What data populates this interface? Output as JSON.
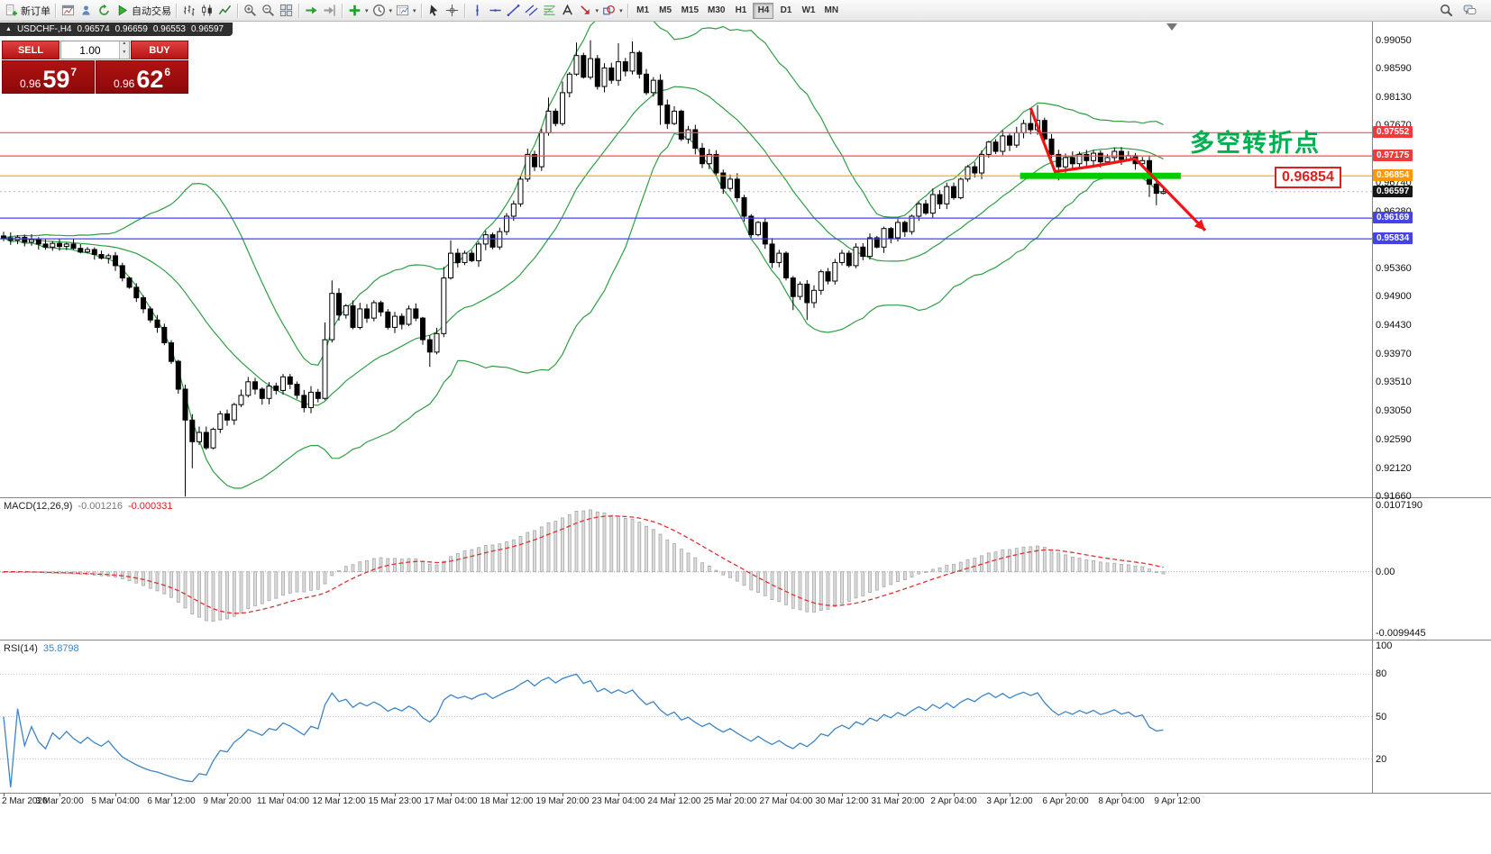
{
  "window": {
    "symbol_tab": {
      "arrow": "▲",
      "symbol": "USDCHF-,H4",
      "open": "0.96574",
      "high": "0.96659",
      "low": "0.96553",
      "close": "0.96597"
    }
  },
  "toolbar": {
    "groups": [
      [
        {
          "name": "new-order-button",
          "icon": "new-order",
          "label": "新订单"
        }
      ],
      [
        {
          "name": "chart-window-button",
          "icon": "chart-window"
        },
        {
          "name": "navigator-button",
          "icon": "navigator"
        },
        {
          "name": "refresh-button",
          "icon": "refresh"
        },
        {
          "name": "auto-trading-button",
          "icon": "auto-trading",
          "label": "自动交易"
        }
      ],
      [
        {
          "name": "bar-chart-button",
          "icon": "bars"
        },
        {
          "name": "candlestick-chart-button",
          "icon": "candles"
        },
        {
          "name": "line-chart-button",
          "icon": "line-chart"
        }
      ],
      [
        {
          "name": "zoom-in-button",
          "icon": "zoom-in"
        },
        {
          "name": "zoom-out-button",
          "icon": "zoom-out"
        },
        {
          "name": "tile-windows-button",
          "icon": "tile"
        }
      ],
      [
        {
          "name": "auto-scroll-button",
          "icon": "auto-scroll"
        },
        {
          "name": "chart-shift-button",
          "icon": "chart-shift"
        }
      ],
      [
        {
          "name": "indicators-button",
          "icon": "indicators",
          "dropdown": true
        },
        {
          "name": "periods-button",
          "icon": "periods",
          "dropdown": true
        },
        {
          "name": "templates-button",
          "icon": "template",
          "dropdown": true
        }
      ],
      [
        {
          "name": "cursor-button",
          "icon": "cursor"
        },
        {
          "name": "crosshair-button",
          "icon": "crosshair"
        }
      ],
      [
        {
          "name": "vertical-line-button",
          "icon": "vline"
        },
        {
          "name": "horizontal-line-button",
          "icon": "hline"
        },
        {
          "name": "trendline-button",
          "icon": "trendline"
        },
        {
          "name": "channel-button",
          "icon": "channel"
        },
        {
          "name": "fibonacci-button",
          "icon": "fibo"
        },
        {
          "name": "text-button",
          "icon": "text"
        },
        {
          "name": "arrows-button",
          "icon": "arrows",
          "dropdown": true
        },
        {
          "name": "shapes-button",
          "icon": "shapes",
          "dropdown": true
        }
      ]
    ],
    "timeframes": [
      "M1",
      "M5",
      "M15",
      "M30",
      "H1",
      "H4",
      "D1",
      "W1",
      "MN"
    ],
    "active_timeframe": "H4",
    "right_icons": [
      {
        "name": "search-button",
        "icon": "search"
      },
      {
        "name": "community-button",
        "icon": "chat"
      }
    ]
  },
  "trade_panel": {
    "sell_label": "SELL",
    "buy_label": "BUY",
    "volume": "1.00",
    "sell_quote": {
      "prefix": "0.96",
      "big": "59",
      "sup": "7"
    },
    "buy_quote": {
      "prefix": "0.96",
      "big": "62",
      "sup": "6"
    }
  },
  "indicators": {
    "macd": {
      "label": "MACD(12,26,9)",
      "value_main": "-0.001216",
      "value_signal": "-0.000331"
    },
    "rsi": {
      "label": "RSI(14)",
      "value": "35.8798"
    }
  },
  "annotations": {
    "turning_point_text": "多空转折点",
    "price_label": "0.96854",
    "green_zone": {
      "from_bar": 145.5,
      "to_bar": 168.5,
      "price": 0.96854
    },
    "arrow_points": [
      [
        147,
        0.9795
      ],
      [
        150.5,
        0.9692
      ],
      [
        156,
        0.9701
      ],
      [
        162,
        0.9713
      ],
      [
        172,
        0.9597
      ]
    ]
  },
  "price_scale": {
    "regular_labels": [
      "0.99050",
      "0.98590",
      "0.98130",
      "0.97670",
      "0.96740",
      "0.96280",
      "0.95360",
      "0.94900",
      "0.94430",
      "0.93970",
      "0.93510",
      "0.93050",
      "0.92590",
      "0.92120",
      "0.91660"
    ],
    "tags": [
      {
        "text": "0.97552",
        "type": "red"
      },
      {
        "text": "0.97175",
        "type": "red"
      },
      {
        "text": "0.96854",
        "type": "orange"
      },
      {
        "text": "0.96597",
        "type": "current"
      },
      {
        "text": "0.96169",
        "type": "blue"
      },
      {
        "text": "0.95834",
        "type": "blue"
      }
    ]
  },
  "time_axis": {
    "labels": [
      "2 Mar 2020",
      "3 Mar 20:00",
      "5 Mar 04:00",
      "6 Mar 12:00",
      "9 Mar 20:00",
      "11 Mar 04:00",
      "12 Mar 12:00",
      "15 Mar 23:00",
      "17 Mar 04:00",
      "18 Mar 12:00",
      "19 Mar 20:00",
      "23 Mar 04:00",
      "24 Mar 12:00",
      "25 Mar 20:00",
      "27 Mar 04:00",
      "30 Mar 12:00",
      "31 Mar 20:00",
      "2 Apr 04:00",
      "3 Apr 12:00",
      "6 Apr 20:00",
      "8 Apr 04:00",
      "9 Apr 12:00"
    ]
  },
  "colors": {
    "bollinger": "#2f9e44",
    "macd_signal": "#e03131",
    "rsi_line": "#3d85c6",
    "green_zone": "#00cc00",
    "arrow_red": "#f01414",
    "annotation_green": "#00b050",
    "tag_red": "#ef3b3b",
    "tag_orange": "#ff9800",
    "tag_blue": "#4343e8",
    "tag_current": "#151515"
  },
  "chart_data": {
    "type": "candlestick",
    "symbol": "USDCHF-",
    "timeframe": "H4",
    "last_ohlc": {
      "open": 0.96574,
      "high": 0.96659,
      "low": 0.96553,
      "close": 0.96597
    },
    "price_axis": {
      "min": 0.9165,
      "max": 0.9935
    },
    "first_open": 0.9588,
    "closes": [
      0.9585,
      0.9581,
      0.9586,
      0.9578,
      0.9582,
      0.9575,
      0.957,
      0.9576,
      0.9571,
      0.9575,
      0.9568,
      0.9562,
      0.9566,
      0.9558,
      0.9552,
      0.9556,
      0.954,
      0.952,
      0.9505,
      0.9488,
      0.947,
      0.9452,
      0.944,
      0.9415,
      0.9385,
      0.934,
      0.929,
      0.9255,
      0.927,
      0.9245,
      0.9275,
      0.93,
      0.929,
      0.9315,
      0.933,
      0.9352,
      0.934,
      0.9325,
      0.9345,
      0.9338,
      0.936,
      0.9348,
      0.933,
      0.931,
      0.9335,
      0.9325,
      0.942,
      0.9495,
      0.946,
      0.9475,
      0.944,
      0.947,
      0.9455,
      0.948,
      0.9465,
      0.944,
      0.9458,
      0.9445,
      0.947,
      0.9455,
      0.942,
      0.94,
      0.943,
      0.952,
      0.956,
      0.9545,
      0.956,
      0.9548,
      0.9575,
      0.959,
      0.957,
      0.9595,
      0.962,
      0.964,
      0.968,
      0.972,
      0.97,
      0.9755,
      0.979,
      0.977,
      0.982,
      0.985,
      0.988,
      0.9845,
      0.9875,
      0.983,
      0.986,
      0.984,
      0.987,
      0.9855,
      0.9885,
      0.985,
      0.982,
      0.984,
      0.98,
      0.977,
      0.979,
      0.9745,
      0.976,
      0.973,
      0.9705,
      0.972,
      0.969,
      0.9665,
      0.968,
      0.965,
      0.962,
      0.959,
      0.961,
      0.9575,
      0.9545,
      0.956,
      0.952,
      0.949,
      0.951,
      0.948,
      0.95,
      0.953,
      0.9515,
      0.9545,
      0.956,
      0.954,
      0.957,
      0.9555,
      0.9585,
      0.957,
      0.96,
      0.9585,
      0.961,
      0.9595,
      0.962,
      0.964,
      0.9625,
      0.9655,
      0.964,
      0.9668,
      0.965,
      0.968,
      0.97,
      0.969,
      0.972,
      0.974,
      0.9725,
      0.975,
      0.9735,
      0.9755,
      0.977,
      0.976,
      0.9775,
      0.9745,
      0.972,
      0.97,
      0.9715,
      0.9705,
      0.972,
      0.971,
      0.9722,
      0.9708,
      0.9715,
      0.9725,
      0.9712,
      0.9718,
      0.9705,
      0.971,
      0.9672,
      0.9657,
      0.96597
    ],
    "wick_overrides": {
      "26": [
        null,
        0.9166
      ],
      "27": [
        null,
        0.9212
      ],
      "46": [
        0.9448,
        null
      ],
      "47": [
        0.9516,
        null
      ],
      "61": [
        null,
        0.9376
      ],
      "63": [
        0.9538,
        null
      ],
      "64": [
        0.9581,
        null
      ],
      "78": [
        0.9812,
        null
      ],
      "80": [
        0.9838,
        null
      ],
      "82": [
        0.9901,
        null
      ],
      "84": [
        0.9905,
        null
      ],
      "88": [
        0.99,
        null
      ],
      "90": [
        0.9903,
        null
      ],
      "94": [
        null,
        0.9768
      ],
      "113": [
        null,
        0.9468
      ],
      "115": [
        null,
        0.9452
      ],
      "147": [
        0.9792,
        null
      ],
      "148": [
        0.98,
        null
      ],
      "151": [
        null,
        0.9678
      ],
      "164": [
        null,
        0.9651
      ],
      "165": [
        null,
        0.9638
      ],
      "166": [
        0.96659,
        0.96553
      ]
    },
    "overlays": {
      "bollinger_period": 20,
      "bollinger_deviation": 2
    },
    "horizontal_levels": [
      {
        "price": 0.97552,
        "color": "#ff4d4d"
      },
      {
        "price": 0.97175,
        "color": "#ff4d4d"
      },
      {
        "price": 0.96854,
        "color": "#ffa000"
      },
      {
        "price": 0.96169,
        "color": "#4040ff"
      },
      {
        "price": 0.95834,
        "color": "#4040ff"
      }
    ],
    "indicators": [
      {
        "name": "MACD",
        "params": [
          12,
          26,
          9
        ],
        "current_main": -0.001216,
        "current_signal": -0.000331,
        "axis_labels": [
          "0.0107190",
          "0.00",
          "-0.0099445"
        ],
        "scale_max": 0.010719,
        "scale_min": -0.0099445
      },
      {
        "name": "RSI",
        "params": [
          14
        ],
        "current": 35.8798,
        "axis_labels": [
          "100",
          "80",
          "50",
          "20"
        ],
        "axis_values": [
          100,
          80,
          50,
          20
        ],
        "levels": [
          80,
          50,
          20
        ]
      }
    ]
  }
}
